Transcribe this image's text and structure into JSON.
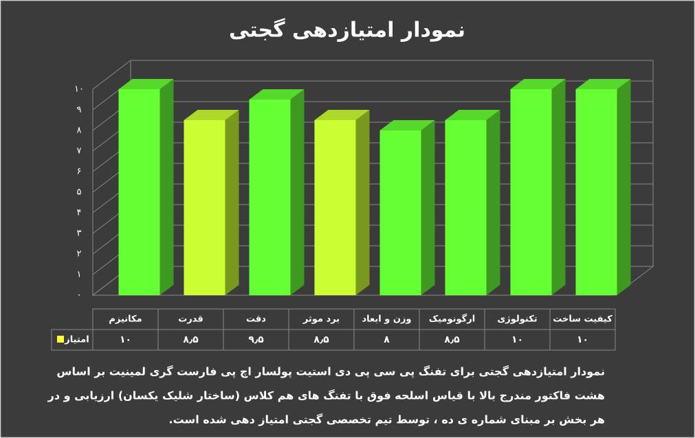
{
  "chart_data": {
    "type": "bar3d",
    "title": "نمودار امتیازدهی گجتی",
    "categories": [
      "مکانیزم",
      "قدرت",
      "دقت",
      "برد موثر",
      "وزن و ابعاد",
      "ارگونومیک",
      "تکنولوژی",
      "کیفیت ساخت"
    ],
    "series": [
      {
        "name": "امتیاز",
        "color": "#ffff33",
        "values": [
          10,
          8.5,
          9.5,
          8.5,
          8,
          8.5,
          10,
          10
        ],
        "value_labels": [
          "۱۰",
          "۸٫۵",
          "۹٫۵",
          "۸٫۵",
          "۸",
          "۸٫۵",
          "۱۰",
          "۱۰"
        ]
      }
    ],
    "bar_colors": [
      "#66ff33",
      "#ccff33",
      "#66ff33",
      "#ccff33",
      "#66ff33",
      "#66ff33",
      "#66ff33",
      "#66ff33"
    ],
    "ylim": [
      0,
      10
    ],
    "yticks": [
      {
        "value": 0,
        "label": "۰"
      },
      {
        "value": 1,
        "label": "۱"
      },
      {
        "value": 2,
        "label": "۲"
      },
      {
        "value": 3,
        "label": "۳"
      },
      {
        "value": 4,
        "label": "۴"
      },
      {
        "value": 5,
        "label": "۵"
      },
      {
        "value": 6,
        "label": "۶"
      },
      {
        "value": 7,
        "label": "۷"
      },
      {
        "value": 8,
        "label": "۸"
      },
      {
        "value": 9,
        "label": "۹"
      },
      {
        "value": 10,
        "label": "۱۰"
      }
    ],
    "grid": true,
    "description": [
      "نمودار امتیازدهی گجتی برای تفنگ پی سی پی دی استیت پولسار اچ پی فارست گری لمینیت بر اساس",
      "هشت فاکتور مندرج بالا با قیاس اسلحه فوق با تفنگ های هم کلاس (ساختار شلیک یکسان) ارزیابی و در",
      "هر بخش بر مبنای شماره ی ده ، توسط تیم تخصصی گجتی امتیاز دهی شده است."
    ]
  }
}
